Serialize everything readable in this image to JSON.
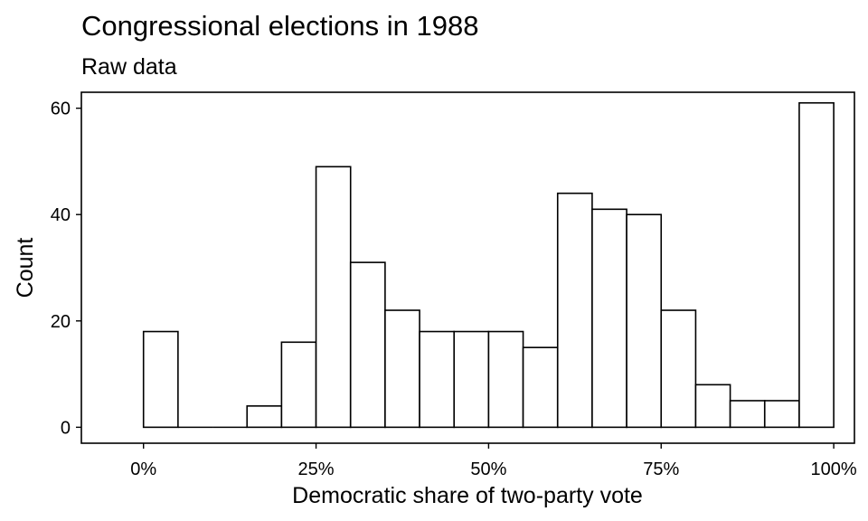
{
  "chart_data": {
    "type": "bar",
    "title": "Congressional elections in 1988",
    "subtitle": "Raw data",
    "xlabel": "Democratic share of two-party vote",
    "ylabel": "Count",
    "bin_width": 0.05,
    "bins": [
      {
        "start": 0.0,
        "end": 0.05,
        "count": 18
      },
      {
        "start": 0.05,
        "end": 0.1,
        "count": 0
      },
      {
        "start": 0.1,
        "end": 0.15,
        "count": 0
      },
      {
        "start": 0.15,
        "end": 0.2,
        "count": 4
      },
      {
        "start": 0.2,
        "end": 0.25,
        "count": 16
      },
      {
        "start": 0.25,
        "end": 0.3,
        "count": 49
      },
      {
        "start": 0.3,
        "end": 0.35,
        "count": 31
      },
      {
        "start": 0.35,
        "end": 0.4,
        "count": 22
      },
      {
        "start": 0.4,
        "end": 0.45,
        "count": 18
      },
      {
        "start": 0.45,
        "end": 0.5,
        "count": 18
      },
      {
        "start": 0.5,
        "end": 0.55,
        "count": 18
      },
      {
        "start": 0.55,
        "end": 0.6,
        "count": 15
      },
      {
        "start": 0.6,
        "end": 0.65,
        "count": 44
      },
      {
        "start": 0.65,
        "end": 0.7,
        "count": 41
      },
      {
        "start": 0.7,
        "end": 0.75,
        "count": 40
      },
      {
        "start": 0.75,
        "end": 0.8,
        "count": 22
      },
      {
        "start": 0.8,
        "end": 0.85,
        "count": 8
      },
      {
        "start": 0.85,
        "end": 0.9,
        "count": 5
      },
      {
        "start": 0.9,
        "end": 0.95,
        "count": 5
      },
      {
        "start": 0.95,
        "end": 1.0,
        "count": 61
      }
    ],
    "xlim": [
      -0.09,
      1.03
    ],
    "ylim": [
      -3,
      63
    ],
    "x_ticks": [
      0,
      0.25,
      0.5,
      0.75,
      1.0
    ],
    "x_tick_labels": [
      "0%",
      "25%",
      "50%",
      "75%",
      "100%"
    ],
    "y_ticks": [
      0,
      20,
      40,
      60
    ],
    "y_tick_labels": [
      "0",
      "20",
      "40",
      "60"
    ],
    "grid": false,
    "legend": "none",
    "bar_fill": "#ffffff",
    "bar_stroke": "#000000"
  }
}
